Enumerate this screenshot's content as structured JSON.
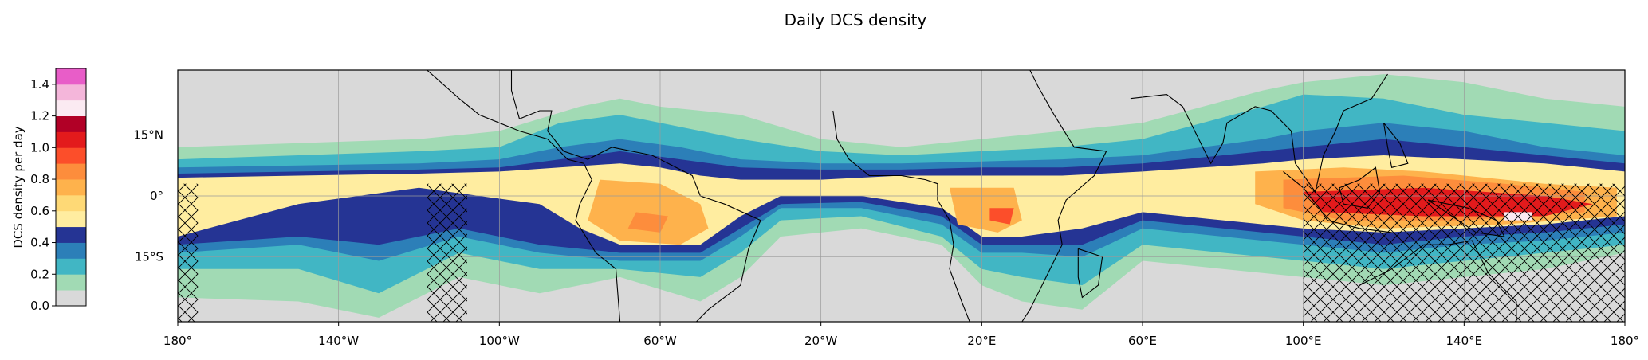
{
  "title": "Daily DCS density",
  "colorbar": {
    "label": "DCS density per day",
    "ticks": [
      "0.0",
      "0.2",
      "0.4",
      "0.6",
      "0.8",
      "1.0",
      "1.2",
      "1.4"
    ],
    "range": [
      0,
      1.5
    ],
    "levels": [
      {
        "from": 0.0,
        "to": 0.1,
        "color": "#d9d9d9"
      },
      {
        "from": 0.1,
        "to": 0.2,
        "color": "#a1dab4"
      },
      {
        "from": 0.2,
        "to": 0.3,
        "color": "#41b6c4"
      },
      {
        "from": 0.3,
        "to": 0.4,
        "color": "#2c7fb8"
      },
      {
        "from": 0.4,
        "to": 0.5,
        "color": "#253494"
      },
      {
        "from": 0.5,
        "to": 0.6,
        "color": "#ffeda0"
      },
      {
        "from": 0.6,
        "to": 0.7,
        "color": "#fed976"
      },
      {
        "from": 0.7,
        "to": 0.8,
        "color": "#feb24c"
      },
      {
        "from": 0.8,
        "to": 0.9,
        "color": "#fd8d3c"
      },
      {
        "from": 0.9,
        "to": 1.0,
        "color": "#fc4e2a"
      },
      {
        "from": 1.0,
        "to": 1.1,
        "color": "#e31a1c"
      },
      {
        "from": 1.1,
        "to": 1.2,
        "color": "#b10026"
      },
      {
        "from": 1.2,
        "to": 1.3,
        "color": "#fbeaf2"
      },
      {
        "from": 1.3,
        "to": 1.4,
        "color": "#f4b6da"
      },
      {
        "from": 1.4,
        "to": 1.5,
        "color": "#e85dc8"
      }
    ]
  },
  "map": {
    "lon_range": [
      -180,
      180
    ],
    "lat_range": [
      -31,
      31
    ],
    "x_ticks": [
      {
        "lon": -180,
        "label": "180°"
      },
      {
        "lon": -140,
        "label": "140°W"
      },
      {
        "lon": -100,
        "label": "100°W"
      },
      {
        "lon": -60,
        "label": "60°W"
      },
      {
        "lon": -20,
        "label": "20°W"
      },
      {
        "lon": 20,
        "label": "20°E"
      },
      {
        "lon": 60,
        "label": "60°E"
      },
      {
        "lon": 100,
        "label": "100°E"
      },
      {
        "lon": 140,
        "label": "140°E"
      },
      {
        "lon": 180,
        "label": "180°"
      }
    ],
    "y_ticks": [
      {
        "lat": 15,
        "label": "15°N"
      },
      {
        "lat": 0,
        "label": "0°"
      },
      {
        "lat": -15,
        "label": "15°S"
      }
    ],
    "hatched_regions": [
      {
        "lon": [
          -180,
          -175
        ],
        "lat": [
          -31,
          3
        ]
      },
      {
        "lon": [
          -118,
          -108
        ],
        "lat": [
          -31,
          3
        ]
      },
      {
        "lon": [
          100,
          180
        ],
        "lat": [
          -31,
          3
        ]
      }
    ]
  }
}
